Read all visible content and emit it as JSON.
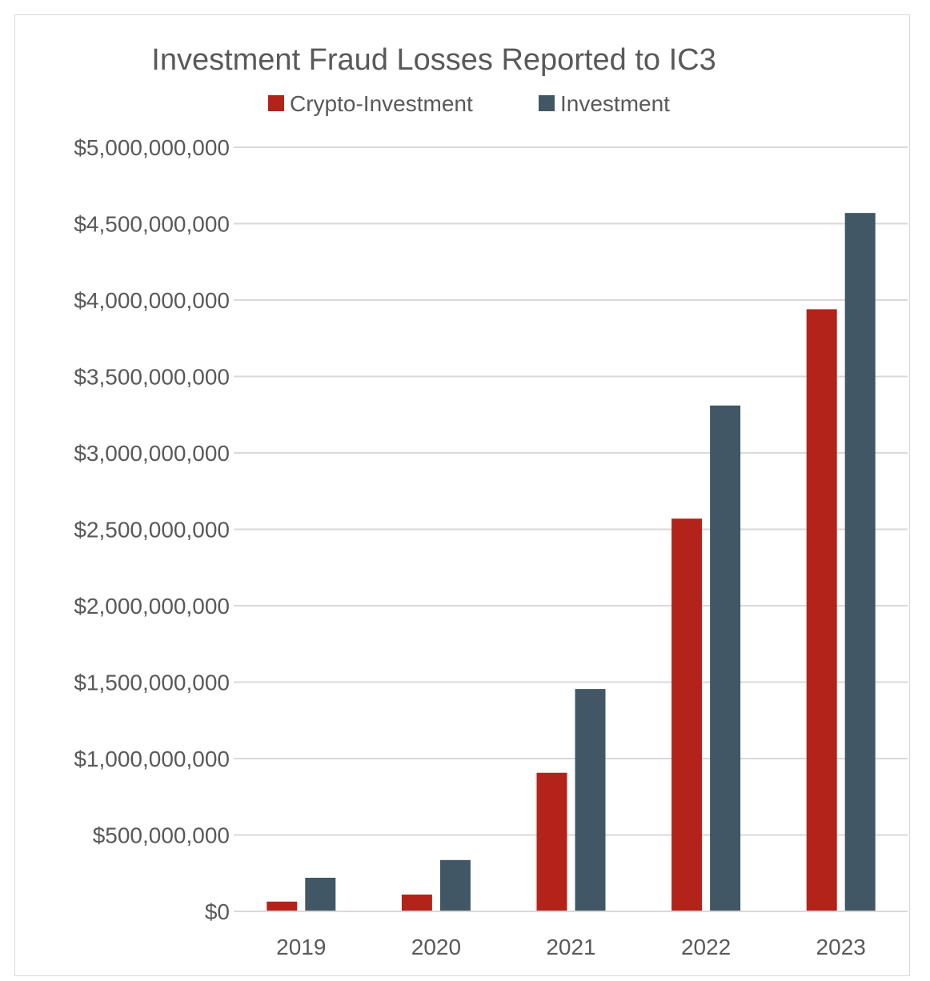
{
  "chart_data": {
    "type": "bar",
    "title": "Investment Fraud Losses Reported to IC3",
    "categories": [
      "2019",
      "2020",
      "2021",
      "2022",
      "2023"
    ],
    "series": [
      {
        "name": "Crypto-Investment",
        "color": "#b3231a",
        "values": [
          64000000,
          110000000,
          907000000,
          2570000000,
          3940000000
        ]
      },
      {
        "name": "Investment",
        "color": "#415765",
        "values": [
          220000000,
          336000000,
          1455000000,
          3310000000,
          4570000000
        ]
      }
    ],
    "yticks": [
      0,
      500000000,
      1000000000,
      1500000000,
      2000000000,
      2500000000,
      3000000000,
      3500000000,
      4000000000,
      4500000000,
      5000000000
    ],
    "ytick_labels": [
      "$0",
      "$500,000,000",
      "$1,000,000,000",
      "$1,500,000,000",
      "$2,000,000,000",
      "$2,500,000,000",
      "$3,000,000,000",
      "$3,500,000,000",
      "$4,000,000,000",
      "$4,500,000,000",
      "$5,000,000,000"
    ],
    "ylim": [
      0,
      5000000000
    ],
    "xlabel": "",
    "ylabel": "",
    "grid": true,
    "legend_position": "top-center",
    "grid_color": "#d9d9d9"
  }
}
